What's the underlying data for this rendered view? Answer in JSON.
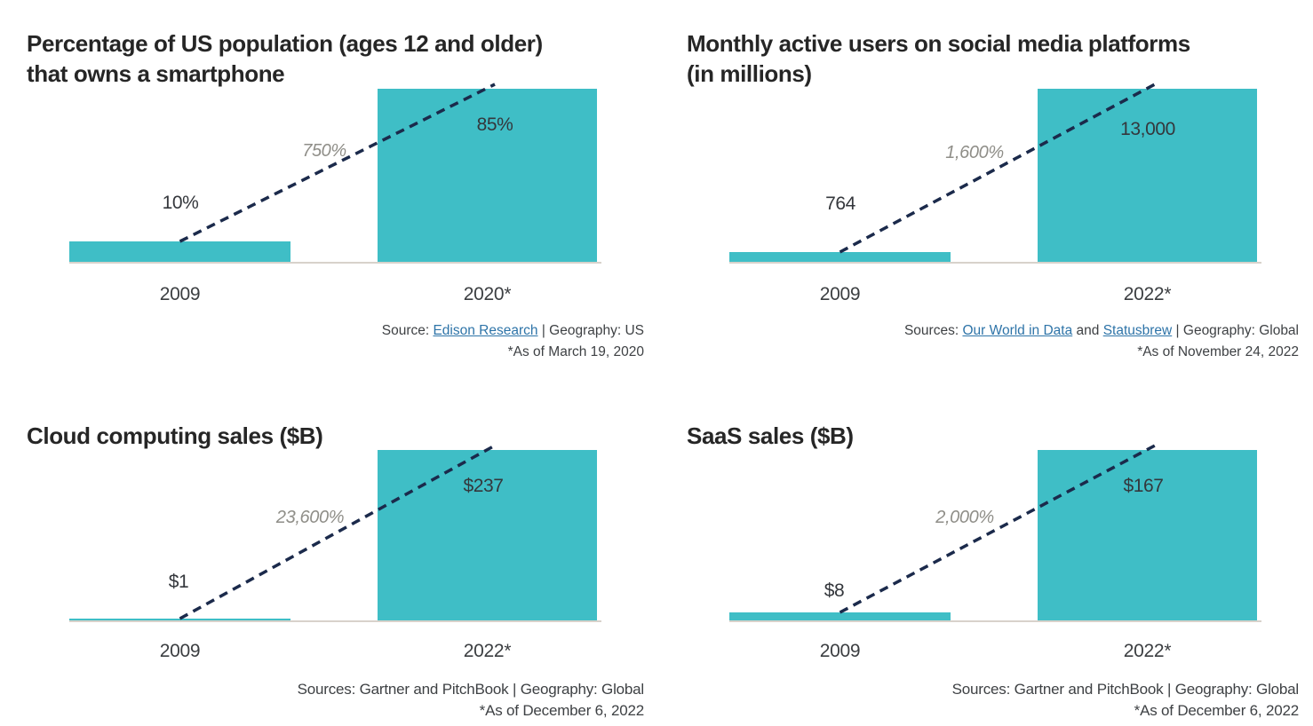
{
  "accent_color": "#3fbec6",
  "trend_line_color": "#1b2a4b",
  "link_color": "#2e74a8",
  "chart_data": [
    {
      "type": "bar",
      "title": "Percentage of US population (ages 12 and older) that owns a smartphone",
      "title_lines": [
        "Percentage of US population (ages 12 and older)",
        "that owns a smartphone"
      ],
      "categories": [
        "2009",
        "2020*"
      ],
      "values": [
        10,
        85
      ],
      "value_labels": [
        "10%",
        "85%"
      ],
      "growth_label": "750%",
      "ylim": [
        0,
        85
      ],
      "grid": false,
      "source": {
        "prefix": "Source: ",
        "link1": "Edison Research",
        "suffix": " | Geography: US",
        "footnote": "*As of March 19, 2020"
      }
    },
    {
      "type": "bar",
      "title": "Monthly active users on social media platforms (in millions)",
      "title_lines": [
        "Monthly active users on social media platforms",
        "(in millions)"
      ],
      "categories": [
        "2009",
        "2022*"
      ],
      "values": [
        764,
        13000
      ],
      "value_labels": [
        "764",
        "13,000"
      ],
      "growth_label": "1,600%",
      "ylim": [
        0,
        13000
      ],
      "grid": false,
      "source": {
        "prefix": "Sources: ",
        "link1": "Our World in Data",
        "mid": " and ",
        "link2": "Statusbrew",
        "suffix": " | Geography: Global",
        "footnote": "*As of November 24, 2022"
      }
    },
    {
      "type": "bar",
      "title": "Cloud computing sales ($B)",
      "title_lines": [
        "Cloud computing sales ($B)",
        ""
      ],
      "categories": [
        "2009",
        "2022*"
      ],
      "values": [
        1,
        237
      ],
      "value_labels": [
        "$1",
        "$237"
      ],
      "growth_label": "23,600%",
      "ylim": [
        0,
        237
      ],
      "grid": false,
      "source": {
        "prefix": "Sources: Gartner and PitchBook | Geography: Global",
        "footnote": "*As of December 6, 2022"
      }
    },
    {
      "type": "bar",
      "title": "SaaS sales ($B)",
      "title_lines": [
        "SaaS sales ($B)",
        ""
      ],
      "categories": [
        "2009",
        "2022*"
      ],
      "values": [
        8,
        167
      ],
      "value_labels": [
        "$8",
        "$167"
      ],
      "growth_label": "2,000%",
      "ylim": [
        0,
        167
      ],
      "grid": false,
      "source": {
        "prefix": "Sources: Gartner and PitchBook | Geography: Global",
        "footnote": "*As of December 6, 2022"
      }
    }
  ]
}
